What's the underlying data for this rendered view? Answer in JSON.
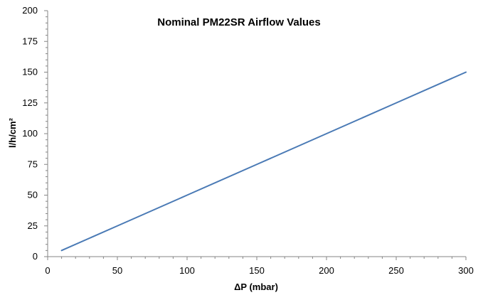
{
  "chart_data": {
    "type": "line",
    "title": "Nominal PM22SR Airflow Values",
    "xlabel": "ΔP (mbar)",
    "ylabel": "l/h/cm²",
    "xlim": [
      0,
      300
    ],
    "ylim": [
      0,
      200
    ],
    "x_ticks": [
      0,
      50,
      100,
      150,
      200,
      250,
      300
    ],
    "y_ticks": [
      0,
      25,
      50,
      75,
      100,
      125,
      150,
      175,
      200
    ],
    "grid": false,
    "legend": "none",
    "series": [
      {
        "color": "#4a7ab5",
        "x": [
          10,
          50,
          100,
          150,
          200,
          250,
          300
        ],
        "y": [
          5,
          25,
          50,
          75,
          100,
          125,
          150
        ]
      }
    ]
  }
}
